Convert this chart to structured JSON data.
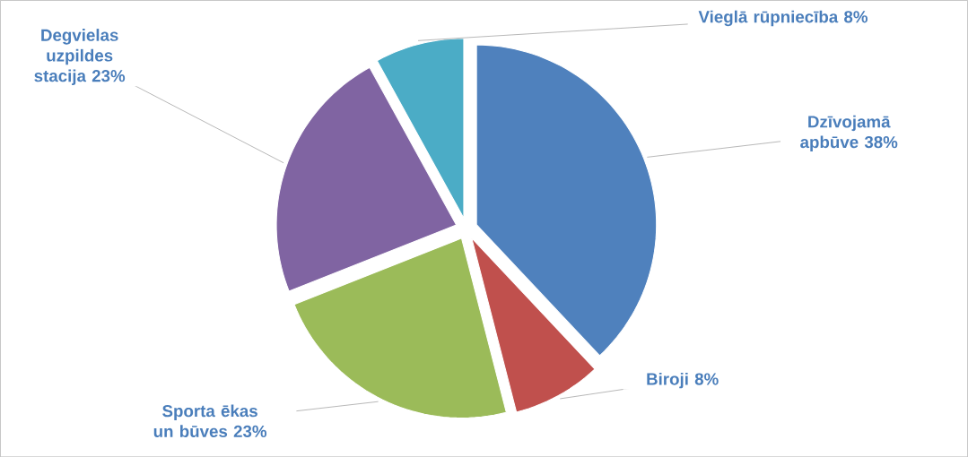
{
  "chart_data": {
    "type": "pie",
    "categories": [
      "Dzīvojamā apbūve",
      "Biroji",
      "Sporta ēkas un būves",
      "Degvielas uzpildes stacija",
      "Vieglā rūpniecība"
    ],
    "values": [
      38,
      8,
      23,
      23,
      8
    ],
    "colors": [
      "#4f81bd",
      "#c0504d",
      "#9bbb59",
      "#8064a2",
      "#4bacc6"
    ],
    "value_labels": [
      "38%",
      "8%",
      "23%",
      "23%",
      "8%"
    ]
  }
}
